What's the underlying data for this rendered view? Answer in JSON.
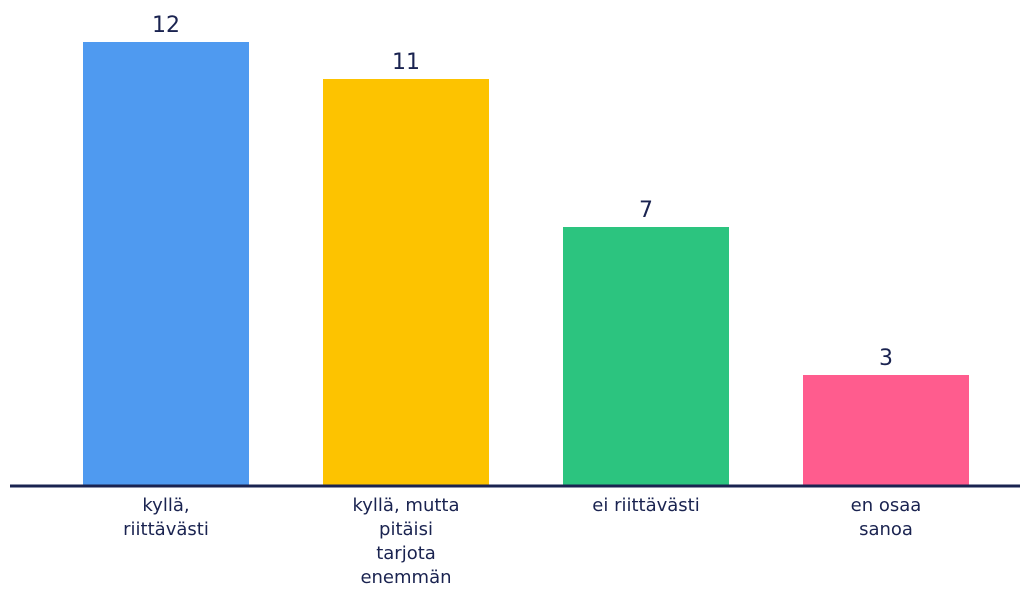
{
  "chart_data": {
    "type": "bar",
    "categories": [
      "kyllä,\nriittävästi",
      "kyllä, mutta\npitäisi\ntarjota\nenemmän",
      "ei riittävästi",
      "en osaa\nsanoa"
    ],
    "values": [
      12,
      11,
      7,
      3
    ],
    "colors": [
      "#4f9af0",
      "#fdc300",
      "#2cc47f",
      "#ff5c8e"
    ],
    "ylim": [
      0,
      12
    ]
  }
}
